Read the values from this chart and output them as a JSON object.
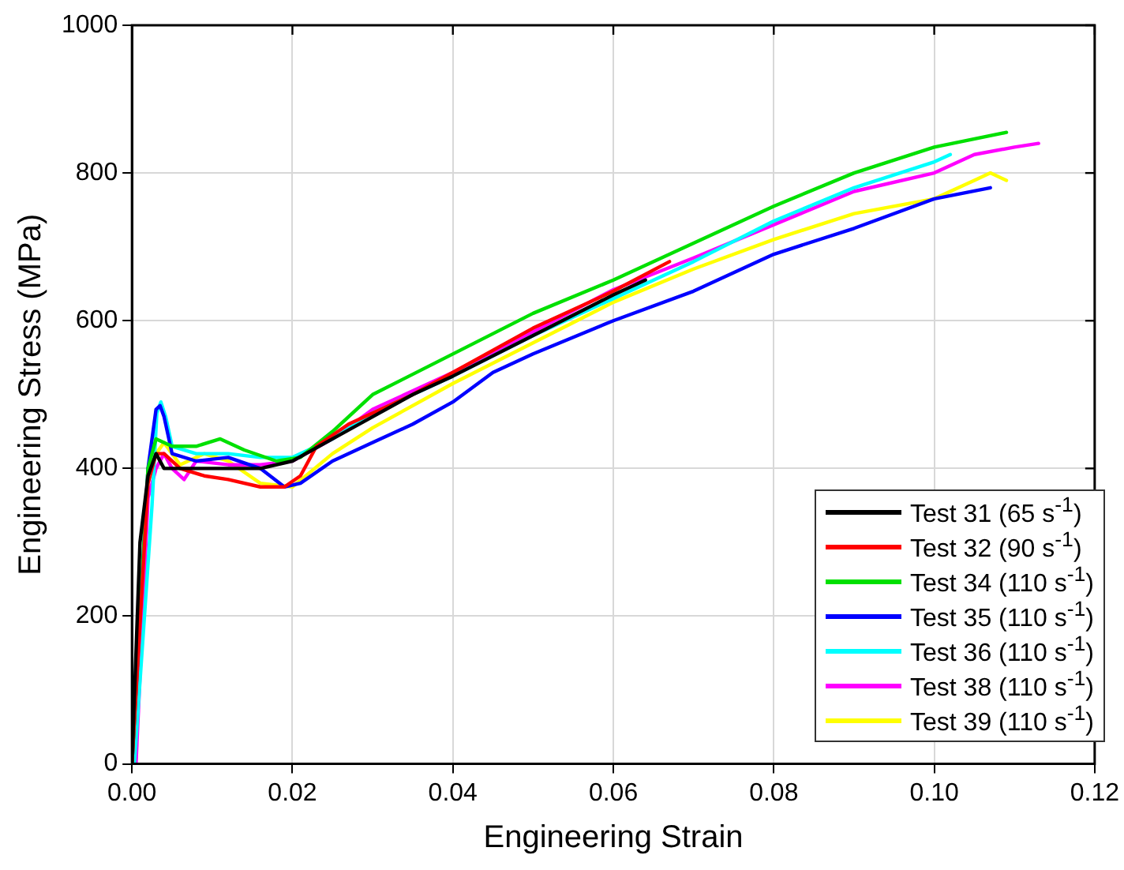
{
  "chart_data": {
    "type": "line",
    "xlabel": "Engineering Strain",
    "ylabel": "Engineering Stress (MPa)",
    "xlim": [
      0,
      0.12
    ],
    "ylim": [
      0,
      1000
    ],
    "xticks": [
      {
        "value": 0,
        "label": "0.00"
      },
      {
        "value": 0.02,
        "label": "0.02"
      },
      {
        "value": 0.04,
        "label": "0.04"
      },
      {
        "value": 0.06,
        "label": "0.06"
      },
      {
        "value": 0.08,
        "label": "0.08"
      },
      {
        "value": 0.1,
        "label": "0.10"
      },
      {
        "value": 0.12,
        "label": "0.12"
      }
    ],
    "yticks": [
      0,
      200,
      400,
      600,
      800,
      1000
    ],
    "grid": true,
    "legend": "bottom right",
    "marker": "none",
    "line_style": "solid",
    "series": [
      {
        "name": "Test 31 (65 s$^{-1}$)",
        "color": "#000000",
        "x": [
          0,
          0.001,
          0.002,
          0.003,
          0.004,
          0.005,
          0.008,
          0.012,
          0.016,
          0.02,
          0.025,
          0.03,
          0.035,
          0.04,
          0.05,
          0.06,
          0.064
        ],
        "values": [
          0,
          300,
          390,
          420,
          400,
          400,
          400,
          400,
          400,
          410,
          440,
          470,
          500,
          525,
          580,
          635,
          655
        ]
      },
      {
        "name": "Test 32 (90 s$^{-1}$)",
        "color": "#ff0000",
        "x": [
          0,
          0.002,
          0.003,
          0.004,
          0.006,
          0.009,
          0.012,
          0.016,
          0.019,
          0.021,
          0.023,
          0.027,
          0.035,
          0.04,
          0.05,
          0.06,
          0.067
        ],
        "values": [
          0,
          380,
          420,
          420,
          400,
          390,
          385,
          375,
          375,
          390,
          430,
          460,
          500,
          530,
          590,
          640,
          680
        ]
      },
      {
        "name": "Test 34 (110 s$^{-1}$)",
        "color": "#00e000",
        "x": [
          0,
          0.002,
          0.003,
          0.005,
          0.008,
          0.011,
          0.014,
          0.018,
          0.021,
          0.025,
          0.03,
          0.04,
          0.05,
          0.06,
          0.07,
          0.08,
          0.09,
          0.1,
          0.109
        ],
        "values": [
          0,
          400,
          440,
          430,
          430,
          440,
          425,
          410,
          415,
          450,
          500,
          555,
          610,
          655,
          705,
          755,
          800,
          835,
          855
        ]
      },
      {
        "name": "Test 35 (110 s$^{-1}$)",
        "color": "#0000ff",
        "x": [
          0,
          0.002,
          0.003,
          0.0035,
          0.004,
          0.005,
          0.008,
          0.012,
          0.016,
          0.019,
          0.021,
          0.025,
          0.03,
          0.035,
          0.04,
          0.045,
          0.05,
          0.06,
          0.07,
          0.08,
          0.09,
          0.1,
          0.107
        ],
        "values": [
          0,
          400,
          480,
          485,
          470,
          420,
          410,
          415,
          400,
          375,
          380,
          410,
          435,
          460,
          490,
          530,
          555,
          600,
          640,
          690,
          725,
          765,
          780
        ]
      },
      {
        "name": "Test 36 (110 s$^{-1}$)",
        "color": "#00ffff",
        "x": [
          0.0003,
          0.0025,
          0.0031,
          0.0036,
          0.0042,
          0.005,
          0.008,
          0.012,
          0.016,
          0.02,
          0.025,
          0.03,
          0.04,
          0.05,
          0.06,
          0.07,
          0.08,
          0.09,
          0.1,
          0.102
        ],
        "values": [
          0,
          350,
          475,
          490,
          470,
          430,
          420,
          420,
          415,
          415,
          440,
          475,
          525,
          580,
          630,
          680,
          735,
          780,
          815,
          825
        ]
      },
      {
        "name": "Test 38 (110 s$^{-1}$)",
        "color": "#ff00ff",
        "x": [
          0.0005,
          0.002,
          0.003,
          0.004,
          0.005,
          0.0065,
          0.008,
          0.012,
          0.016,
          0.02,
          0.025,
          0.03,
          0.04,
          0.05,
          0.06,
          0.07,
          0.08,
          0.09,
          0.1,
          0.105,
          0.11,
          0.113
        ],
        "values": [
          0,
          360,
          400,
          420,
          400,
          385,
          410,
          405,
          405,
          410,
          440,
          480,
          530,
          585,
          642,
          685,
          730,
          775,
          800,
          825,
          835,
          840
        ]
      },
      {
        "name": "Test 39 (110 s$^{-1}$)",
        "color": "#ffff00",
        "x": [
          0,
          0.002,
          0.003,
          0.004,
          0.006,
          0.009,
          0.012,
          0.016,
          0.02,
          0.025,
          0.03,
          0.04,
          0.05,
          0.06,
          0.07,
          0.08,
          0.09,
          0.1,
          0.105,
          0.107,
          0.109
        ],
        "values": [
          0,
          380,
          420,
          435,
          405,
          420,
          410,
          380,
          375,
          420,
          455,
          515,
          570,
          625,
          670,
          710,
          745,
          765,
          790,
          800,
          790
        ]
      }
    ]
  }
}
